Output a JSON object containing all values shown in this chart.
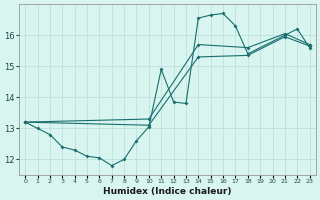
{
  "xlabel": "Humidex (Indice chaleur)",
  "ylabel": "",
  "bg_color": "#d8f5f0",
  "grid_color": "#c0e0dc",
  "line_color": "#1a6e6e",
  "xlim": [
    -0.5,
    23.5
  ],
  "ylim": [
    11.5,
    17.0
  ],
  "yticks": [
    12,
    13,
    14,
    15,
    16
  ],
  "line1_x": [
    0,
    1,
    2,
    3,
    4,
    5,
    6,
    7,
    8,
    9,
    10,
    11,
    12,
    13,
    14,
    15,
    16,
    17,
    18,
    21,
    22,
    23
  ],
  "line1_y": [
    13.2,
    13.0,
    12.8,
    12.4,
    12.3,
    12.1,
    12.05,
    11.8,
    12.0,
    12.6,
    13.05,
    14.9,
    13.85,
    13.8,
    16.55,
    16.65,
    16.7,
    16.3,
    15.4,
    16.0,
    16.2,
    15.6
  ],
  "line2_x": [
    0,
    10,
    14,
    18,
    21,
    23
  ],
  "line2_y": [
    13.2,
    13.3,
    15.7,
    15.6,
    16.05,
    15.7
  ],
  "line3_x": [
    0,
    10,
    14,
    18,
    21,
    23
  ],
  "line3_y": [
    13.2,
    13.1,
    15.3,
    15.35,
    15.95,
    15.65
  ]
}
